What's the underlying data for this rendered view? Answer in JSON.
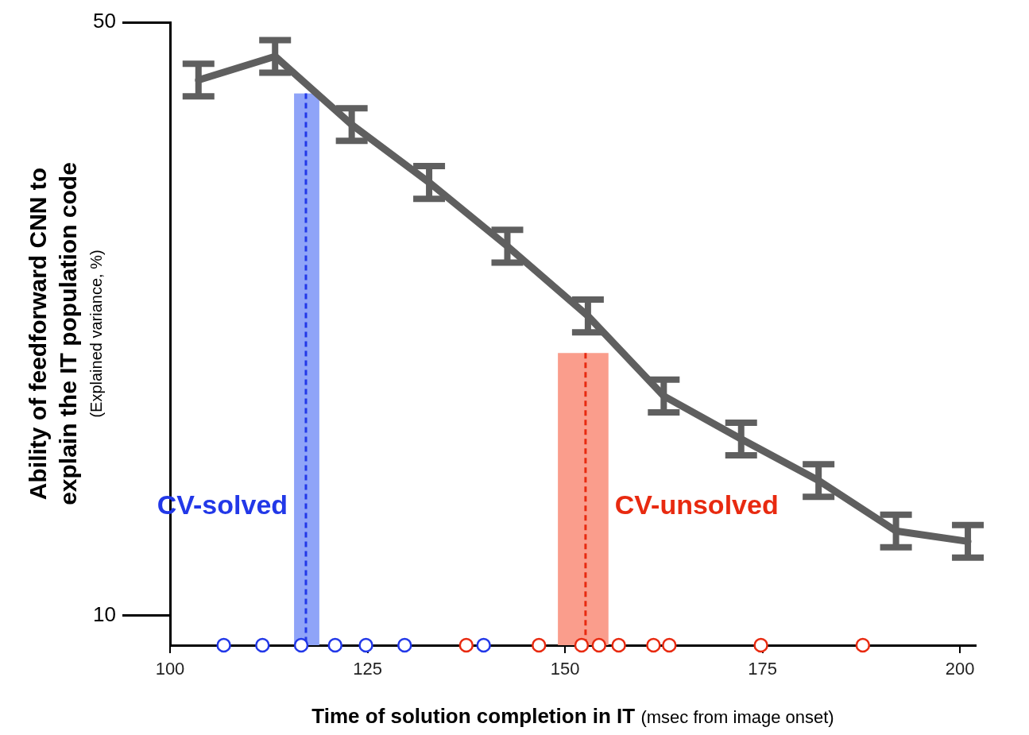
{
  "chart_data": {
    "type": "line",
    "x_label": "Time of solution completion in IT",
    "x_sublabel": "(msec from image onset)",
    "y_label": [
      "Ability of feedforward CNN to",
      "explain the IT population code"
    ],
    "y_sublabel": "(Explained variance, %)",
    "xlim": [
      100,
      202
    ],
    "xticks": [
      100,
      125,
      150,
      175,
      200
    ],
    "ylim": [
      8,
      50
    ],
    "yticks": [
      10,
      50
    ],
    "grid": false,
    "series": [
      {
        "type": "line",
        "color": "#5f5f5f",
        "x": [
          103.6,
          113.3,
          123.0,
          132.8,
          142.7,
          152.9,
          162.5,
          172.3,
          182.1,
          191.9,
          201.0
        ],
        "values": [
          46.1,
          47.7,
          43.1,
          39.2,
          34.9,
          30.2,
          24.8,
          21.9,
          19.1,
          15.7,
          15.0
        ],
        "errors": [
          1.1,
          1.1,
          1.1,
          1.1,
          1.1,
          1.1,
          1.1,
          1.1,
          1.1,
          1.1,
          1.1
        ]
      },
      {
        "name": "CV-solved",
        "type": "scatter",
        "marker": "circle",
        "color": "#2238e8",
        "x": [
          106.8,
          111.7,
          116.6,
          120.9,
          124.8,
          129.7,
          139.7
        ],
        "values": [
          8,
          8,
          8,
          8,
          8,
          8,
          8
        ]
      },
      {
        "name": "CV-unsolved",
        "type": "scatter",
        "marker": "circle",
        "color": "#e82a10",
        "x": [
          137.5,
          146.7,
          152.1,
          154.3,
          156.8,
          161.2,
          163.2,
          174.8,
          187.7
        ],
        "values": [
          8,
          8,
          8,
          8,
          8,
          8,
          8,
          8,
          8
        ]
      }
    ],
    "bands": [
      {
        "name": "CV-solved",
        "color": "#8fa4f8",
        "x": [
          115.7,
          118.9
        ],
        "center": 117.2,
        "top": 45.2
      },
      {
        "name": "CV-unsolved",
        "color": "#fa9d8c",
        "x": [
          149.1,
          155.5
        ],
        "center": 152.6,
        "top": 27.7
      }
    ]
  }
}
